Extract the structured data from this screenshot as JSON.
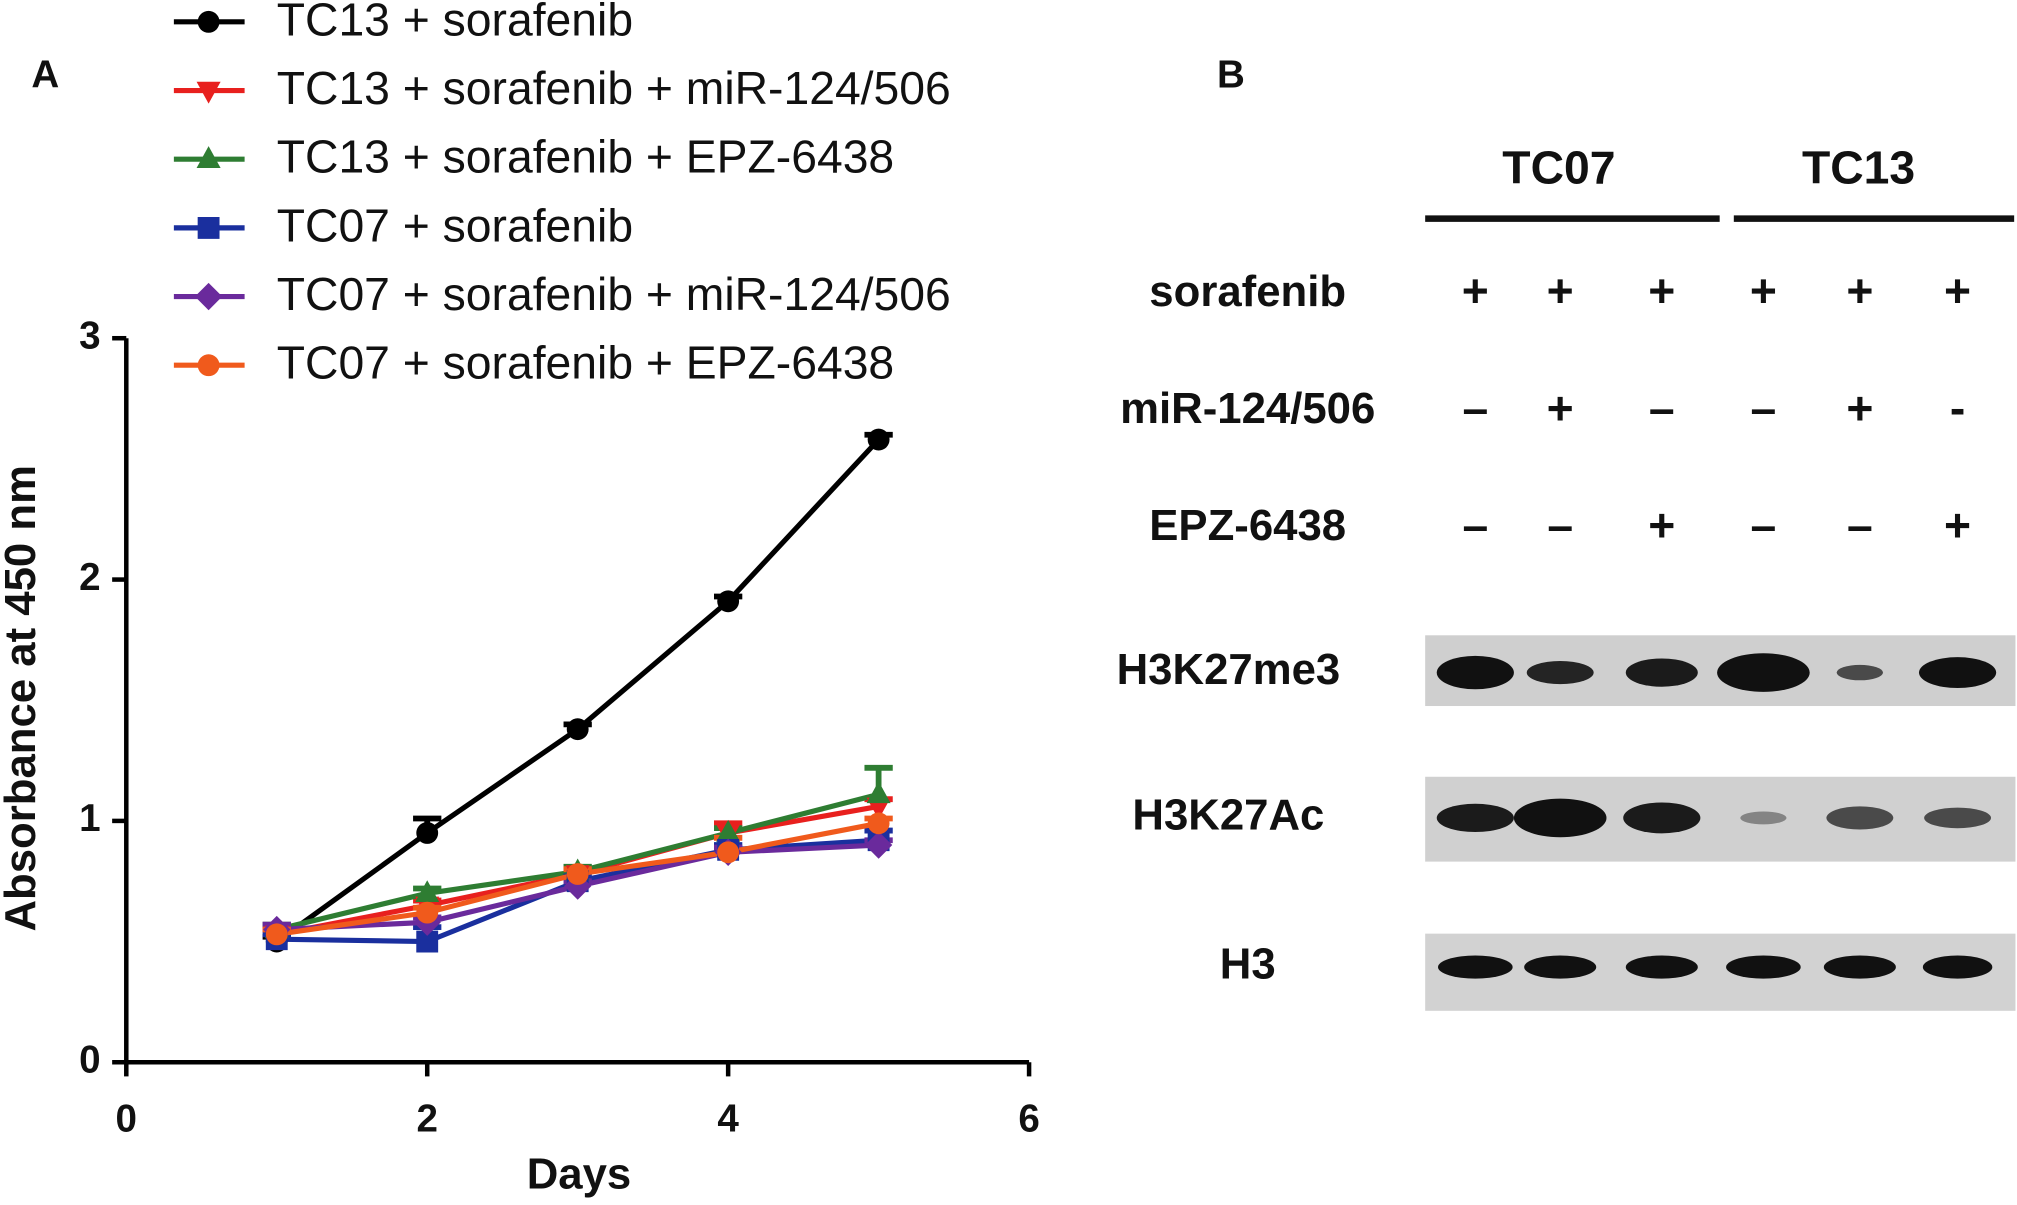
{
  "panel_labels": {
    "a": "A",
    "b": "B"
  },
  "chart_data": {
    "type": "line",
    "x_label": "Days",
    "y_label": "Absorbance at 450 nm",
    "x": [
      1,
      2,
      3,
      4,
      5
    ],
    "xlim": [
      0,
      6
    ],
    "xticks": [
      0,
      2,
      4,
      6
    ],
    "ylim": [
      0,
      3
    ],
    "yticks": [
      0,
      1,
      2,
      3
    ],
    "legend": "top",
    "series": [
      {
        "name": "TC13 + sorafenib",
        "color": "#000000",
        "marker": "circle",
        "values": [
          0.5,
          0.95,
          1.38,
          1.91,
          2.58
        ],
        "errors": [
          0.02,
          0.06,
          0.02,
          0.02,
          0.02
        ]
      },
      {
        "name": "TC13 + sorafenib + miR-124/506",
        "color": "#e8201e",
        "marker": "triangle-down",
        "values": [
          0.53,
          0.65,
          0.78,
          0.95,
          1.06
        ],
        "errors": [
          0.02,
          0.02,
          0.02,
          0.04,
          0.03
        ]
      },
      {
        "name": "TC13 + sorafenib + EPZ-6438",
        "color": "#2e7d32",
        "marker": "triangle-up",
        "values": [
          0.55,
          0.7,
          0.79,
          0.95,
          1.11
        ],
        "errors": [
          0.02,
          0.02,
          0.02,
          0.02,
          0.11
        ]
      },
      {
        "name": "TC07 + sorafenib",
        "color": "#1a2f9e",
        "marker": "square",
        "values": [
          0.51,
          0.5,
          0.75,
          0.88,
          0.92
        ],
        "errors": [
          0.02,
          0.06,
          0.02,
          0.02,
          0.04
        ]
      },
      {
        "name": "TC07 + sorafenib + miR-124/506",
        "color": "#6a2a9c",
        "marker": "diamond",
        "values": [
          0.55,
          0.58,
          0.73,
          0.87,
          0.9
        ],
        "errors": [
          0.02,
          0.02,
          0.02,
          0.02,
          0.02
        ]
      },
      {
        "name": "TC07 + sorafenib + EPZ-6438",
        "color": "#f05a1c",
        "marker": "circle",
        "values": [
          0.53,
          0.62,
          0.78,
          0.87,
          0.99
        ],
        "errors": [
          0.02,
          0.02,
          0.02,
          0.06,
          0.02
        ]
      }
    ]
  },
  "blot": {
    "groups": [
      "TC07",
      "TC13"
    ],
    "treatments": [
      {
        "label": "sorafenib",
        "signs": [
          "+",
          "+",
          "+",
          "+",
          "+",
          "+"
        ]
      },
      {
        "label": "miR-124/506",
        "signs": [
          "–",
          "+",
          "–",
          "–",
          "+",
          "-"
        ]
      },
      {
        "label": "EPZ-6438",
        "signs": [
          "–",
          "–",
          "+",
          "–",
          "–",
          "+"
        ]
      }
    ],
    "bands": [
      "H3K27me3",
      "H3K27Ac",
      "H3"
    ]
  }
}
